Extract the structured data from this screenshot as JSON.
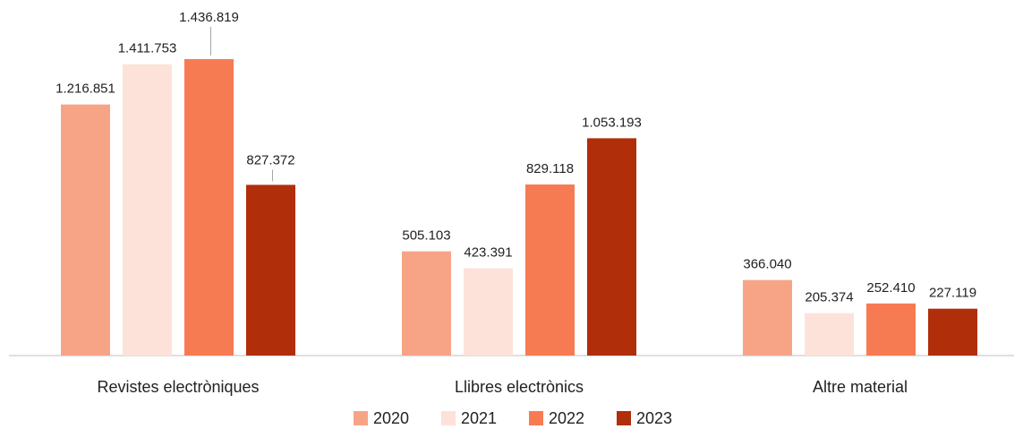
{
  "chart_data": {
    "type": "bar",
    "categories": [
      "Revistes electròniques",
      "Llibres electrònics",
      "Altre material"
    ],
    "series": [
      {
        "name": "2020",
        "color": "#f7a486",
        "values": [
          1216851,
          505103,
          366040
        ],
        "value_labels": [
          "1.216.851",
          "505.103",
          "366.040"
        ]
      },
      {
        "name": "2021",
        "color": "#fde2d9",
        "values": [
          1411753,
          423391,
          205374
        ],
        "value_labels": [
          "1.411.753",
          "423.391",
          "205.374"
        ]
      },
      {
        "name": "2022",
        "color": "#f77b52",
        "values": [
          1436819,
          829118,
          252410
        ],
        "value_labels": [
          "1.436.819",
          "829.118",
          "252.410"
        ]
      },
      {
        "name": "2023",
        "color": "#b12e0a",
        "values": [
          827372,
          1053193,
          227119
        ],
        "value_labels": [
          "827.372",
          "1.053.193",
          "227.119"
        ]
      }
    ],
    "legend": "bottom"
  }
}
